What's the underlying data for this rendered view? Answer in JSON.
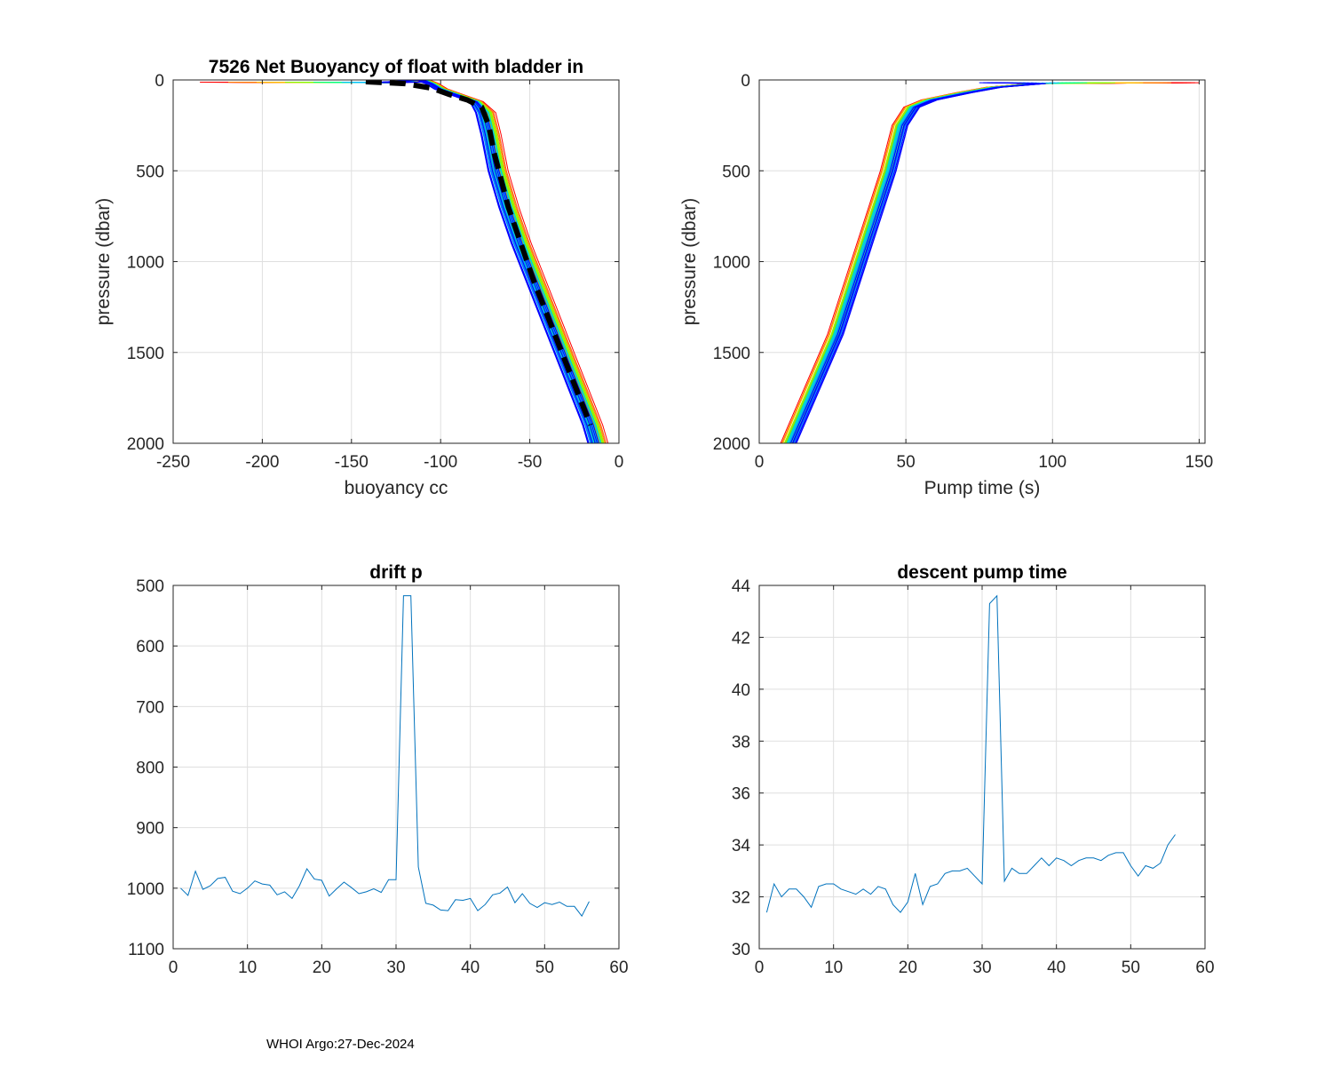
{
  "footer": "WHOI Argo:27-Dec-2024",
  "chart_data": [
    {
      "type": "line",
      "title": "7526 Net Buoyancy of float with bladder in",
      "xlabel": "buoyancy cc",
      "ylabel": "pressure (dbar)",
      "xlim": [
        -250,
        0
      ],
      "ylim": [
        0,
        2000
      ],
      "y_reversed": true,
      "xticks": [
        -250,
        -200,
        -150,
        -100,
        -50,
        0
      ],
      "yticks": [
        0,
        500,
        1000,
        1500,
        2000
      ],
      "grid": true,
      "profile_colors": [
        "#ff0000",
        "#ff7f00",
        "#ffbf00",
        "#7fff00",
        "#00ff7f",
        "#00bfff",
        "#0080ff",
        "#0000ff"
      ],
      "profile_count": 56,
      "series": [
        {
          "color": "#000000",
          "dashed": true,
          "x": [
            -142,
            -120,
            -105,
            -95,
            -85,
            -77,
            -73,
            -70,
            -62,
            -55,
            -48,
            -40,
            -32,
            -24,
            -16
          ],
          "y": [
            10,
            20,
            45,
            80,
            110,
            150,
            250,
            400,
            700,
            900,
            1100,
            1300,
            1500,
            1700,
            1900
          ]
        }
      ]
    },
    {
      "type": "line",
      "title": "",
      "xlabel": "Pump time (s)",
      "ylabel": "pressure (dbar)",
      "xlim": [
        0,
        152
      ],
      "ylim": [
        0,
        2000
      ],
      "y_reversed": true,
      "xticks": [
        0,
        50,
        100,
        150
      ],
      "yticks": [
        0,
        500,
        1000,
        1500,
        2000
      ],
      "grid": true,
      "profile_colors": [
        "#ff0000",
        "#ff7f00",
        "#ffbf00",
        "#7fff00",
        "#00ff7f",
        "#00bfff",
        "#0080ff",
        "#0000ff"
      ],
      "profile_count": 56
    },
    {
      "type": "line",
      "title": "drift p",
      "xlabel": "",
      "ylabel": "",
      "xlim": [
        0,
        60
      ],
      "ylim": [
        500,
        1100
      ],
      "y_reversed": true,
      "xticks": [
        0,
        10,
        20,
        30,
        40,
        50,
        60
      ],
      "yticks": [
        500,
        600,
        700,
        800,
        900,
        1000,
        1100
      ],
      "grid": true,
      "series": [
        {
          "color": "#0072bd",
          "x": [
            1,
            2,
            3,
            4,
            5,
            6,
            7,
            8,
            9,
            10,
            11,
            12,
            13,
            14,
            15,
            16,
            17,
            18,
            19,
            20,
            21,
            22,
            23,
            24,
            25,
            26,
            27,
            28,
            29,
            30,
            31,
            32,
            33,
            34,
            35,
            36,
            37,
            38,
            39,
            40,
            41,
            42,
            43,
            44,
            45,
            46,
            47,
            48,
            49,
            50,
            51,
            52,
            53,
            54,
            55,
            56
          ],
          "y": [
            1000,
            1012,
            972,
            1002,
            996,
            984,
            982,
            1005,
            1009,
            1000,
            988,
            993,
            995,
            1011,
            1006,
            1017,
            996,
            968,
            985,
            987,
            1013,
            1001,
            990,
            999,
            1009,
            1006,
            1001,
            1007,
            986,
            986,
            517,
            517,
            965,
            1025,
            1028,
            1036,
            1037,
            1019,
            1020,
            1017,
            1037,
            1027,
            1011,
            1008,
            998,
            1024,
            1009,
            1025,
            1032,
            1024,
            1027,
            1023,
            1030,
            1030,
            1046,
            1022
          ]
        }
      ]
    },
    {
      "type": "line",
      "title": "descent pump time",
      "xlabel": "",
      "ylabel": "",
      "xlim": [
        0,
        60
      ],
      "ylim": [
        30,
        44
      ],
      "xticks": [
        0,
        10,
        20,
        30,
        40,
        50,
        60
      ],
      "yticks": [
        30,
        32,
        34,
        36,
        38,
        40,
        42,
        44
      ],
      "grid": true,
      "series": [
        {
          "color": "#0072bd",
          "x": [
            1,
            2,
            3,
            4,
            5,
            6,
            7,
            8,
            9,
            10,
            11,
            12,
            13,
            14,
            15,
            16,
            17,
            18,
            19,
            20,
            21,
            22,
            23,
            24,
            25,
            26,
            27,
            28,
            29,
            30,
            31,
            32,
            33,
            34,
            35,
            36,
            37,
            38,
            39,
            40,
            41,
            42,
            43,
            44,
            45,
            46,
            47,
            48,
            49,
            50,
            51,
            52,
            53,
            54,
            55,
            56
          ],
          "y": [
            31.4,
            32.5,
            32.0,
            32.3,
            32.3,
            32.0,
            31.6,
            32.4,
            32.5,
            32.5,
            32.3,
            32.2,
            32.1,
            32.3,
            32.1,
            32.4,
            32.3,
            31.7,
            31.4,
            31.8,
            32.9,
            31.7,
            32.4,
            32.5,
            32.9,
            33.0,
            33.0,
            33.1,
            32.8,
            32.5,
            43.3,
            43.6,
            32.6,
            33.1,
            32.9,
            32.9,
            33.2,
            33.5,
            33.2,
            33.5,
            33.4,
            33.2,
            33.4,
            33.5,
            33.5,
            33.4,
            33.6,
            33.7,
            33.7,
            33.2,
            32.8,
            33.2,
            33.1,
            33.3,
            34.0,
            34.4
          ]
        }
      ]
    }
  ]
}
